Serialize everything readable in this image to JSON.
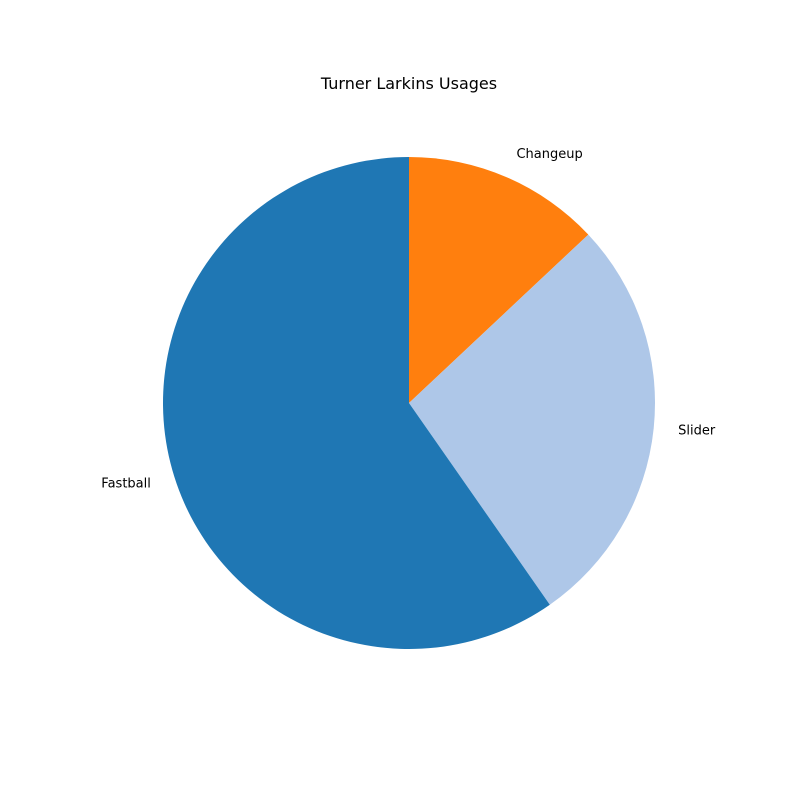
{
  "chart_data": {
    "type": "pie",
    "title": "Turner Larkins Usages",
    "slices": [
      {
        "label": "Changeup",
        "value": 13.0,
        "color": "#ff7f0e"
      },
      {
        "label": "Slider",
        "value": 27.3,
        "color": "#aec7e8"
      },
      {
        "label": "Fastball",
        "value": 59.7,
        "color": "#1f77b4"
      }
    ],
    "start_angle_deg": 90,
    "direction": "clockwise"
  }
}
